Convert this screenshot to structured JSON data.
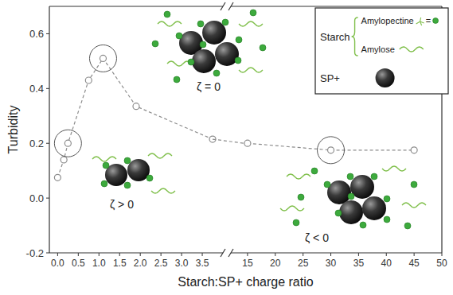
{
  "chart_data": [
    {
      "type": "line",
      "x_label": "Starch:SP+ charge ratio",
      "y_label": "Turbidity",
      "xlim": [
        -0.2,
        4.0
      ],
      "xticks": [
        {
          "value": 0,
          "label": "0.0"
        },
        0.5,
        {
          "value": 1,
          "label": "1.0"
        },
        1.5,
        {
          "value": 2,
          "label": "2.0"
        },
        2.5,
        {
          "value": 3,
          "label": "3.0"
        },
        3.5
      ],
      "ylim": [
        -0.2,
        0.7
      ],
      "yticks": [
        -0.2,
        {
          "value": 0,
          "label": "0.0"
        },
        0.2,
        0.4,
        0.6
      ],
      "series": [
        {
          "color": "#8c8c8c",
          "marker": "circle",
          "line_style": "dashed",
          "x": [
            0,
            0.15,
            0.25,
            0.75,
            1.1,
            1.9,
            3.75
          ],
          "values": [
            0.075,
            0.14,
            0.2,
            0.43,
            0.51,
            0.335,
            0.215
          ]
        }
      ],
      "annotations": [
        "ζ > 0",
        "ζ = 0",
        "ζ < 0"
      ],
      "key": {
        "group": "Starch",
        "items": [
          "Amylopectine",
          "Amylose"
        ],
        "equals": "=",
        "particle": "SP+"
      }
    },
    {
      "type": "line",
      "tick_labels": "x",
      "xlim": [
        12,
        50
      ],
      "xticks": [
        15,
        20,
        25,
        30,
        35,
        40,
        45,
        50
      ],
      "ylim": [
        -0.2,
        0.7
      ],
      "series": [
        {
          "color": "#8c8c8c",
          "marker": "circle",
          "line_style": "dashed",
          "x": [
            15,
            30,
            45
          ],
          "values": [
            0.2,
            0.175,
            0.175
          ]
        }
      ]
    }
  ]
}
